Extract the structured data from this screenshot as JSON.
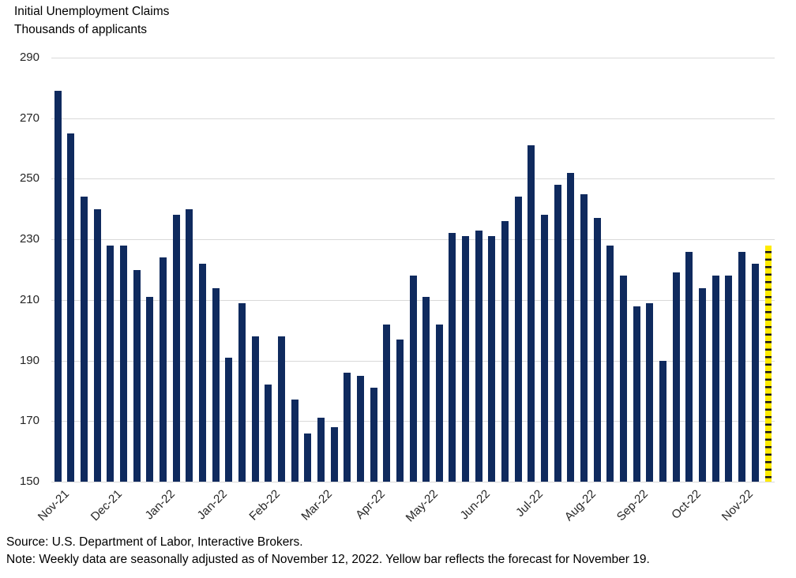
{
  "header": {
    "title": "Initial Unemployment Claims",
    "subtitle": "Thousands of applicants"
  },
  "chart_data": {
    "type": "bar",
    "title": "Initial Unemployment Claims",
    "ylabel": "Thousands of applicants",
    "ylim": [
      150,
      290
    ],
    "yticks": [
      290,
      270,
      250,
      230,
      210,
      190,
      170,
      150
    ],
    "grid": true,
    "legend": "none",
    "bar_color": "#0f2a5e",
    "forecast_bar_color": "#ffeb00",
    "forecast_dash_color": "#15161f",
    "gridline_color": "#d9d9d9",
    "x_tick_labels": [
      "Nov-21",
      "Dec-21",
      "Jan-22",
      "Jan-22",
      "Feb-22",
      "Mar-22",
      "Apr-22",
      "May-22",
      "Jun-22",
      "Jul-22",
      "Aug-22",
      "Sep-22",
      "Oct-22",
      "Nov-22"
    ],
    "x_tick_bar_index": [
      0,
      4,
      8,
      12,
      16,
      20,
      24,
      28,
      32,
      36,
      40,
      44,
      48,
      52
    ],
    "values": [
      279,
      265,
      244,
      240,
      228,
      228,
      220,
      211,
      224,
      238,
      240,
      222,
      214,
      191,
      209,
      198,
      182,
      198,
      177,
      166,
      171,
      168,
      186,
      185,
      181,
      202,
      197,
      218,
      211,
      202,
      232,
      231,
      233,
      231,
      236,
      244,
      261,
      238,
      248,
      252,
      245,
      237,
      228,
      218,
      208,
      209,
      190,
      219,
      226,
      214,
      218,
      218,
      226,
      222,
      228
    ],
    "forecast_index": 54,
    "forecast_label": "Forecast for November 19"
  },
  "footer": {
    "source": "Source: U.S. Department of Labor, Interactive Brokers.",
    "note": "Note: Weekly data are seasonally adjusted as of November 12, 2022. Yellow bar reflects the forecast for November 19."
  }
}
